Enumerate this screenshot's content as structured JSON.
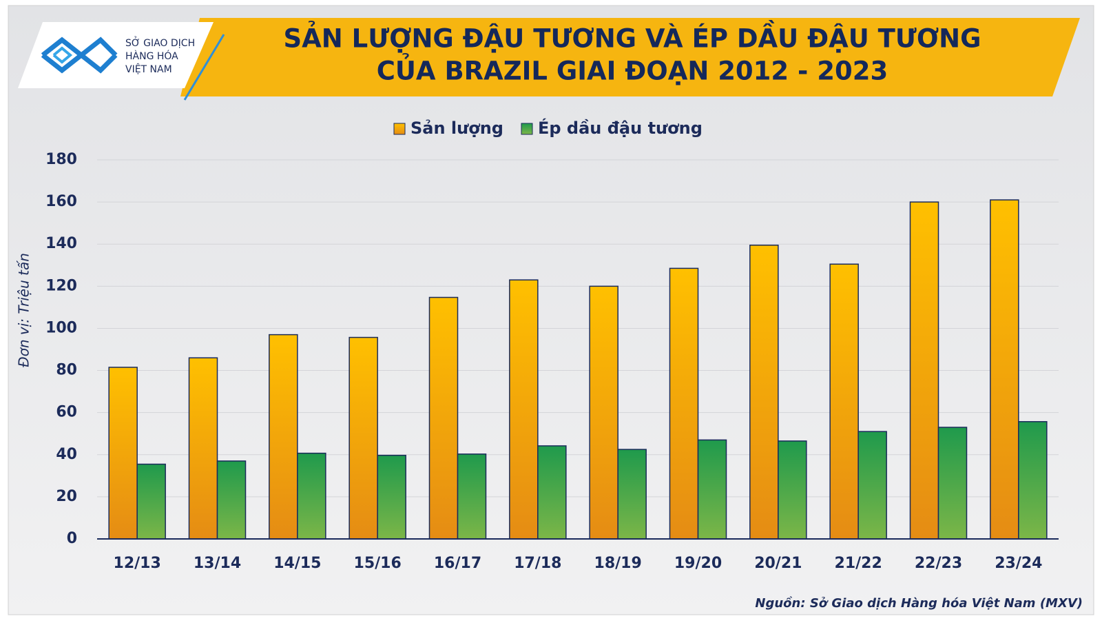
{
  "chart_data": {
    "type": "bar",
    "title": [
      "SẢN LƯỢNG ĐẬU TƯƠNG VÀ ÉP DẦU ĐẬU TƯƠNG",
      "CỦA BRAZIL GIAI ĐOẠN 2012 - 2023"
    ],
    "logo": [
      "SỞ GIAO DỊCH",
      "HÀNG HÓA",
      "VIỆT NAM"
    ],
    "ylabel": "Đơn vị: Triệu tấn",
    "source": "Nguồn: Sở Giao dịch Hàng hóa Việt Nam (MXV)",
    "categories": [
      "12/13",
      "13/14",
      "14/15",
      "15/16",
      "16/17",
      "17/18",
      "18/19",
      "19/20",
      "20/21",
      "21/22",
      "22/23",
      "23/24"
    ],
    "series": [
      {
        "name": "Sản lượng",
        "color": "#ffc000",
        "color_bottom": "#e58c14",
        "values": [
          81.5,
          86,
          97,
          95.7,
          114.7,
          123,
          120,
          128.5,
          139.5,
          130.5,
          160,
          161
        ]
      },
      {
        "name": "Ép dầu đậu tương",
        "color": "#1f9a4c",
        "color_bottom": "#7cb648",
        "values": [
          35.5,
          37,
          40.7,
          39.7,
          40.3,
          44.2,
          42.5,
          47,
          46.5,
          51,
          53,
          55.7
        ]
      }
    ],
    "ylim": [
      0,
      180
    ],
    "yticks": [
      0,
      20,
      40,
      60,
      80,
      100,
      120,
      140,
      160,
      180
    ],
    "grid": true,
    "legend": "top"
  }
}
